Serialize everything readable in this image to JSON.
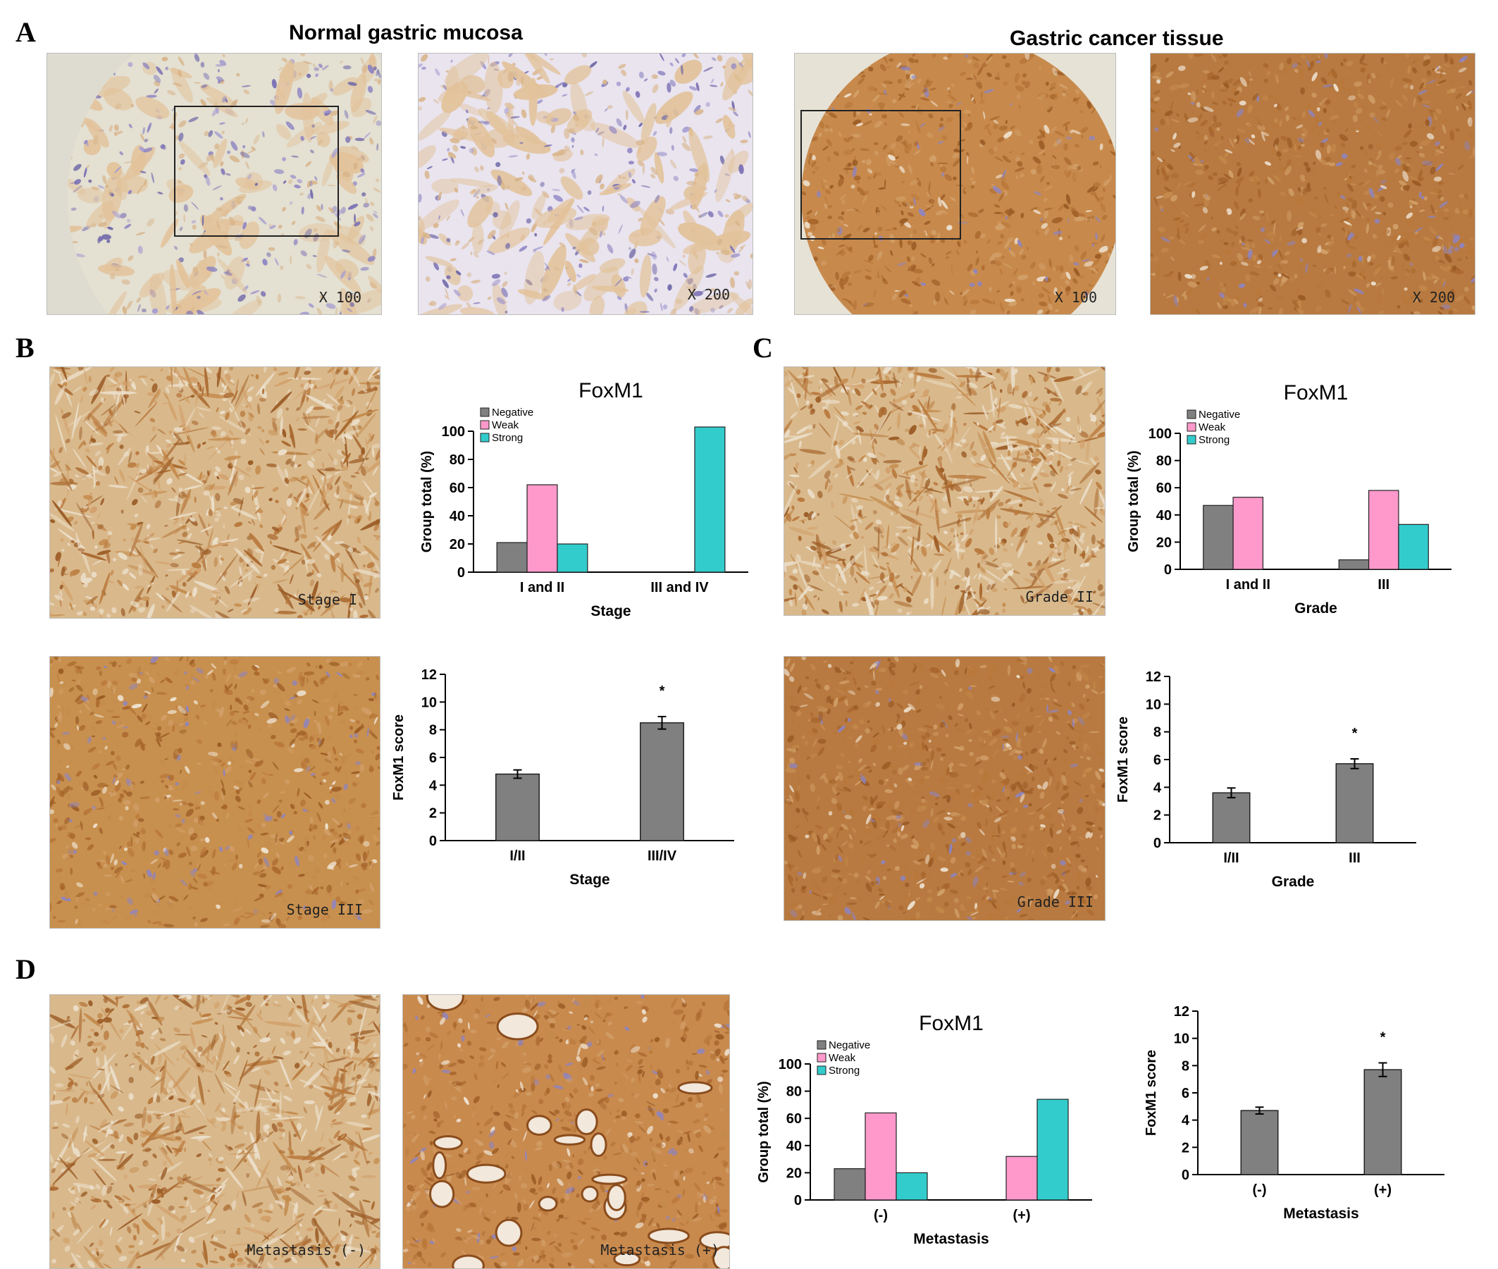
{
  "figure": {
    "panel_letters": {
      "a": "A",
      "b": "B",
      "c": "C",
      "d": "D"
    },
    "titles": {
      "normal": "Normal gastric mucosa",
      "cancer": "Gastric cancer tissue"
    },
    "images": {
      "a1_mag": "X 100",
      "a2_mag": "X 200",
      "a3_mag": "X 100",
      "a4_mag": "X 200",
      "b1_label": "Stage I",
      "b2_label": "Stage III",
      "c1_label": "Grade II",
      "c2_label": "Grade III",
      "d1_label": "Metastasis (-)",
      "d2_label": "Metastasis (+)"
    },
    "colors": {
      "negative": "#808080",
      "weak": "#ff99cc",
      "strong": "#33cccc",
      "score_bar": "#808080",
      "stain_brown": "#b26a2c",
      "stain_blue": "#7e72b8",
      "background_tissue": "#e8d9c4"
    }
  },
  "chart_data": [
    {
      "id": "B-top",
      "type": "bar",
      "title": "FoxM1",
      "xlabel": "Stage",
      "ylabel": "Group total (%)",
      "ylim": [
        0,
        100
      ],
      "yticks": [
        0,
        20,
        40,
        60,
        80,
        100
      ],
      "categories": [
        "I and II",
        "III and IV"
      ],
      "legend": "top-left",
      "series": [
        {
          "name": "Negative",
          "color": "#808080",
          "values": [
            21,
            0
          ]
        },
        {
          "name": "Weak",
          "color": "#ff99cc",
          "values": [
            62,
            0
          ]
        },
        {
          "name": "Strong",
          "color": "#33cccc",
          "values": [
            20,
            103
          ]
        }
      ]
    },
    {
      "id": "B-bottom",
      "type": "bar",
      "title": "",
      "xlabel": "Stage",
      "ylabel": "FoxM1  score",
      "ylim": [
        0,
        12
      ],
      "yticks": [
        0,
        2,
        4,
        6,
        8,
        10,
        12
      ],
      "categories": [
        "I/II",
        "III/IV"
      ],
      "values": [
        4.8,
        8.5
      ],
      "errors": [
        0.3,
        0.45
      ],
      "significance": [
        null,
        "*"
      ]
    },
    {
      "id": "C-top",
      "type": "bar",
      "title": "FoxM1",
      "xlabel": "Grade",
      "ylabel": "Group total (%)",
      "ylim": [
        0,
        100
      ],
      "yticks": [
        0,
        20,
        40,
        60,
        80,
        100
      ],
      "categories": [
        "I and II",
        "III"
      ],
      "legend": "top-left",
      "series": [
        {
          "name": "Negative",
          "color": "#808080",
          "values": [
            47,
            7
          ]
        },
        {
          "name": "Weak",
          "color": "#ff99cc",
          "values": [
            53,
            58
          ]
        },
        {
          "name": "Strong",
          "color": "#33cccc",
          "values": [
            0,
            33
          ]
        }
      ]
    },
    {
      "id": "C-bottom",
      "type": "bar",
      "title": "",
      "xlabel": "Grade",
      "ylabel": "FoxM1  score",
      "ylim": [
        0,
        12
      ],
      "yticks": [
        0,
        2,
        4,
        6,
        8,
        10,
        12
      ],
      "categories": [
        "I/II",
        "III"
      ],
      "values": [
        3.6,
        5.7
      ],
      "errors": [
        0.35,
        0.35
      ],
      "significance": [
        null,
        "*"
      ]
    },
    {
      "id": "D-left",
      "type": "bar",
      "title": "FoxM1",
      "xlabel": "Metastasis",
      "ylabel": "Group total (%)",
      "ylim": [
        0,
        100
      ],
      "yticks": [
        0,
        20,
        40,
        60,
        80,
        100
      ],
      "categories": [
        "(-)",
        "(+)"
      ],
      "legend": "top-left",
      "series": [
        {
          "name": "Negative",
          "color": "#808080",
          "values": [
            23,
            0
          ]
        },
        {
          "name": "Weak",
          "color": "#ff99cc",
          "values": [
            64,
            32
          ]
        },
        {
          "name": "Strong",
          "color": "#33cccc",
          "values": [
            20,
            74
          ]
        }
      ]
    },
    {
      "id": "D-right",
      "type": "bar",
      "title": "",
      "xlabel": "Metastasis",
      "ylabel": "FoxM1  score",
      "ylim": [
        0,
        12
      ],
      "yticks": [
        0,
        2,
        4,
        6,
        8,
        10,
        12
      ],
      "categories": [
        "(-)",
        "(+)"
      ],
      "values": [
        4.7,
        7.7
      ],
      "errors": [
        0.25,
        0.5
      ],
      "significance": [
        null,
        "*"
      ]
    }
  ]
}
